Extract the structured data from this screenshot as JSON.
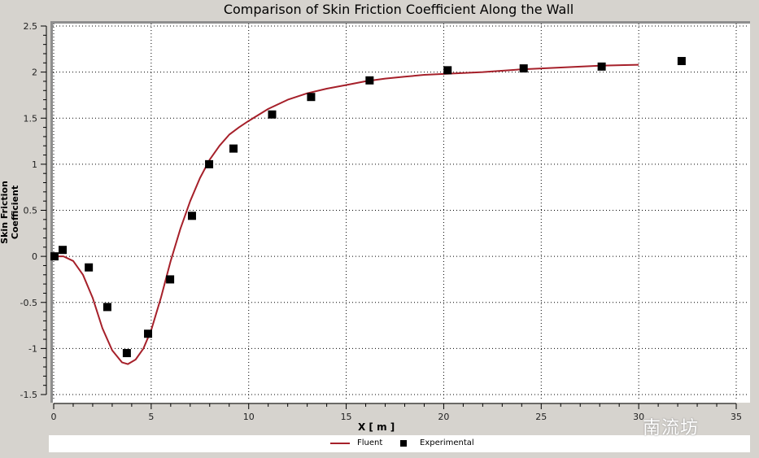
{
  "chart_data": {
    "type": "line",
    "title": "Comparison of Skin Friction Coefficient Along the Wall",
    "xlabel": "X [ m ]",
    "ylabel": "Skin Friction Coefficient",
    "xlim": [
      0,
      35
    ],
    "ylim": [
      -1.5,
      2.5
    ],
    "x_ticks": [
      0,
      5,
      10,
      15,
      20,
      25,
      30,
      35
    ],
    "y_ticks": [
      2.5,
      2,
      1.5,
      1,
      0.5,
      0,
      -0.5,
      -1,
      -1.5
    ],
    "grid": true,
    "legend_position": "bottom",
    "series": [
      {
        "name": "Fluent",
        "style": "line",
        "color": "#a6202a",
        "x": [
          0,
          0.5,
          1,
          1.5,
          2,
          2.5,
          3,
          3.5,
          3.8,
          4.2,
          4.6,
          5,
          5.5,
          6,
          6.5,
          7,
          7.5,
          8,
          8.5,
          9,
          9.5,
          10,
          11,
          12,
          13,
          14,
          15,
          16,
          17,
          18,
          19,
          20,
          22,
          24,
          26,
          28,
          30
        ],
        "y": [
          0,
          0.0,
          -0.05,
          -0.2,
          -0.45,
          -0.78,
          -1.02,
          -1.15,
          -1.17,
          -1.12,
          -1.0,
          -0.8,
          -0.45,
          -0.05,
          0.3,
          0.6,
          0.85,
          1.05,
          1.2,
          1.32,
          1.4,
          1.47,
          1.6,
          1.7,
          1.77,
          1.82,
          1.86,
          1.9,
          1.93,
          1.95,
          1.97,
          1.98,
          2.0,
          2.03,
          2.05,
          2.07,
          2.08
        ]
      },
      {
        "name": "Experimental",
        "style": "marker",
        "marker": "square",
        "color": "#000000",
        "x": [
          0.04,
          0.46,
          1.8,
          2.75,
          3.75,
          4.84,
          5.97,
          7.09,
          7.97,
          9.22,
          11.2,
          13.2,
          16.2,
          20.2,
          24.1,
          28.1,
          32.2
        ],
        "y": [
          0,
          0.07,
          -0.12,
          -0.55,
          -1.05,
          -0.84,
          -0.25,
          0.44,
          1.0,
          1.17,
          1.54,
          1.73,
          1.91,
          2.02,
          2.04,
          2.06,
          2.12
        ]
      }
    ]
  },
  "legend": {
    "fluent": "Fluent",
    "experimental": "Experimental"
  },
  "watermark": "南流坊"
}
